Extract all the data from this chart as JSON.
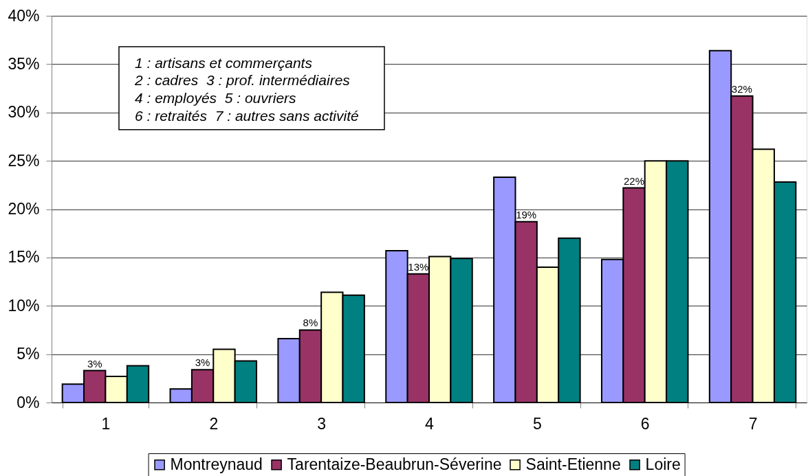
{
  "chart_data": {
    "type": "bar",
    "categories": [
      "1",
      "2",
      "3",
      "4",
      "5",
      "6",
      "7"
    ],
    "series": [
      {
        "name": "Montreynaud",
        "color": "#9999ff",
        "values": [
          1.9,
          1.4,
          6.6,
          15.7,
          23.3,
          14.8,
          36.4
        ]
      },
      {
        "name": "Tarentaize-Beaubrun-Séverine",
        "color": "#993366",
        "values": [
          3.3,
          3.4,
          7.5,
          13.3,
          18.7,
          22.2,
          31.7
        ],
        "value_labels": [
          "3%",
          "3%",
          "8%",
          "13%",
          "19%",
          "22%",
          "32%"
        ]
      },
      {
        "name": "Saint-Etienne",
        "color": "#ffffcc",
        "values": [
          2.7,
          5.5,
          11.4,
          15.1,
          14.0,
          25.0,
          26.2
        ]
      },
      {
        "name": "Loire",
        "color": "#008080",
        "values": [
          3.8,
          4.3,
          11.1,
          14.9,
          17.0,
          25.0,
          22.8
        ]
      }
    ],
    "ylim": [
      0,
      40
    ],
    "yticks": [
      {
        "value": 0,
        "label": "0%"
      },
      {
        "value": 5,
        "label": "5%"
      },
      {
        "value": 10,
        "label": "10%"
      },
      {
        "value": 15,
        "label": "15%"
      },
      {
        "value": 20,
        "label": "20%"
      },
      {
        "value": 25,
        "label": "25%"
      },
      {
        "value": 30,
        "label": "30%"
      },
      {
        "value": 35,
        "label": "35%"
      },
      {
        "value": 40,
        "label": "40%"
      }
    ],
    "grid": "y",
    "legend": "bottom",
    "annotations": [
      "1 : artisans et commerçants",
      "2 : cadres  3 : prof. intermédiaires",
      "4 : employés  5 : ouvriers",
      "6 : retraités  7 : autres sans activité"
    ]
  }
}
